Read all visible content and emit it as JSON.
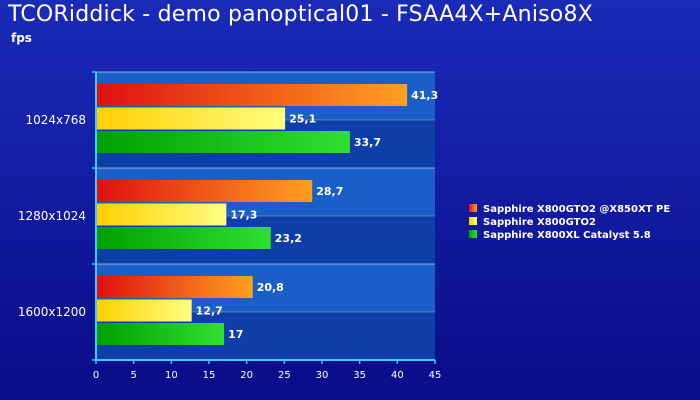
{
  "header": {
    "title": "TCORiddick - demo panoptical01 - FSAA4X+Aniso8X",
    "unit": "fps"
  },
  "chart_data": {
    "type": "bar",
    "orientation": "horizontal",
    "title": "TCORiddick - demo panoptical01 - FSAA4X+Aniso8X",
    "ylabel": "fps",
    "categories": [
      "1024x768",
      "1280x1024",
      "1600x1200"
    ],
    "series": [
      {
        "name": "Sapphire X800GTO2 @X850XT PE",
        "values": [
          41.3,
          28.7,
          20.8
        ],
        "labels": [
          "41,3",
          "28,7",
          "20,8"
        ],
        "color_from": "#e01010",
        "color_to": "#ffa020"
      },
      {
        "name": "Sapphire X800GTO2",
        "values": [
          25.1,
          17.3,
          12.7
        ],
        "labels": [
          "25,1",
          "17,3",
          "12,7"
        ],
        "color_from": "#ffd000",
        "color_to": "#ffff80"
      },
      {
        "name": "Sapphire X800XL Catalyst 5.8",
        "values": [
          33.7,
          23.2,
          17.0
        ],
        "labels": [
          "33,7",
          "23,2",
          "17"
        ],
        "color_from": "#00a000",
        "color_to": "#30e030"
      }
    ],
    "xlim": [
      0,
      45
    ],
    "xticks": [
      0,
      5,
      10,
      15,
      20,
      25,
      30,
      35,
      40,
      45
    ],
    "grid": true,
    "legend_position": "right",
    "colors": {
      "background": "#0d0f8f",
      "plot_band_light": "#1a5fc8",
      "plot_band_dark": "#0e3fa8",
      "axis": "#40c8ff"
    }
  }
}
